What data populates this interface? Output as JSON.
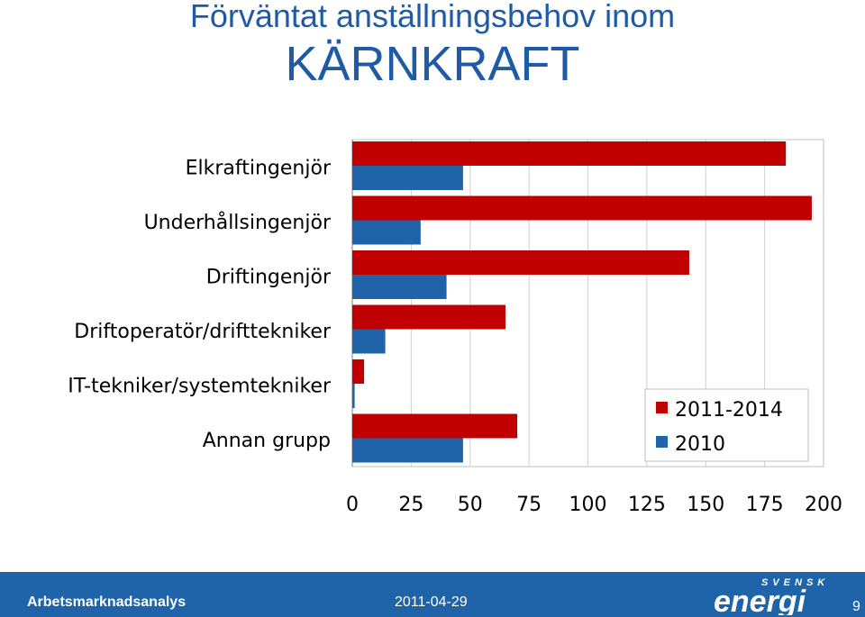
{
  "title": {
    "line1": "Förväntat anställningsbehov inom",
    "line2": "KÄRNKRAFT"
  },
  "chart_data": {
    "type": "bar",
    "orientation": "horizontal",
    "categories": [
      "Elkraftingenjör",
      "Underhållsingenjör",
      "Driftingenjör",
      "Driftoperatör/drifttekniker",
      "IT-tekniker/systemtekniker",
      "Annan grupp"
    ],
    "series": [
      {
        "name": "2011-2014",
        "color": "#c00000",
        "values": [
          184,
          195,
          143,
          65,
          5,
          70
        ]
      },
      {
        "name": "2010",
        "color": "#1f63a8",
        "values": [
          47,
          29,
          40,
          14,
          1,
          47
        ]
      }
    ],
    "xlim": [
      0,
      200
    ],
    "xticks": [
      "0",
      "25",
      "50",
      "75",
      "100",
      "125",
      "150",
      "175",
      "200"
    ],
    "grid": true,
    "legend_position": "bottom-right"
  },
  "footer": {
    "left_text": "Arbetsmarknadsanalys",
    "date": "2011-04-29",
    "logo_top": "SVENSK",
    "logo_main": "energi",
    "page_number": "9"
  },
  "colors": {
    "title": "#1f5aa6",
    "footer_bg": "#1f63a8"
  }
}
